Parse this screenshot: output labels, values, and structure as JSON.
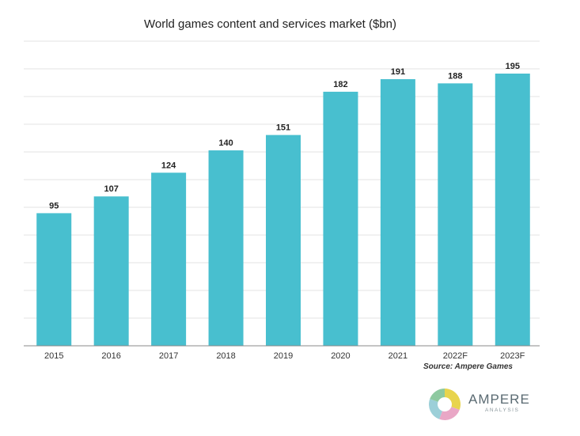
{
  "chart_data": {
    "type": "bar",
    "title": "World games content and services market ($bn)",
    "categories": [
      "2015",
      "2016",
      "2017",
      "2018",
      "2019",
      "2020",
      "2021",
      "2022F",
      "2023F"
    ],
    "values": [
      95,
      107,
      124,
      140,
      151,
      182,
      191,
      188,
      195
    ],
    "xlabel": "",
    "ylabel": "",
    "ylim": [
      0,
      200
    ],
    "grid": true,
    "bar_color": "#48bfcf",
    "source": "Source: Ampere Games"
  },
  "logo": {
    "name": "AMPERE",
    "subtitle": "ANALYSIS",
    "colors": [
      "#e8d44d",
      "#e9a7c6",
      "#9ccfd8",
      "#8ec9a0"
    ]
  }
}
